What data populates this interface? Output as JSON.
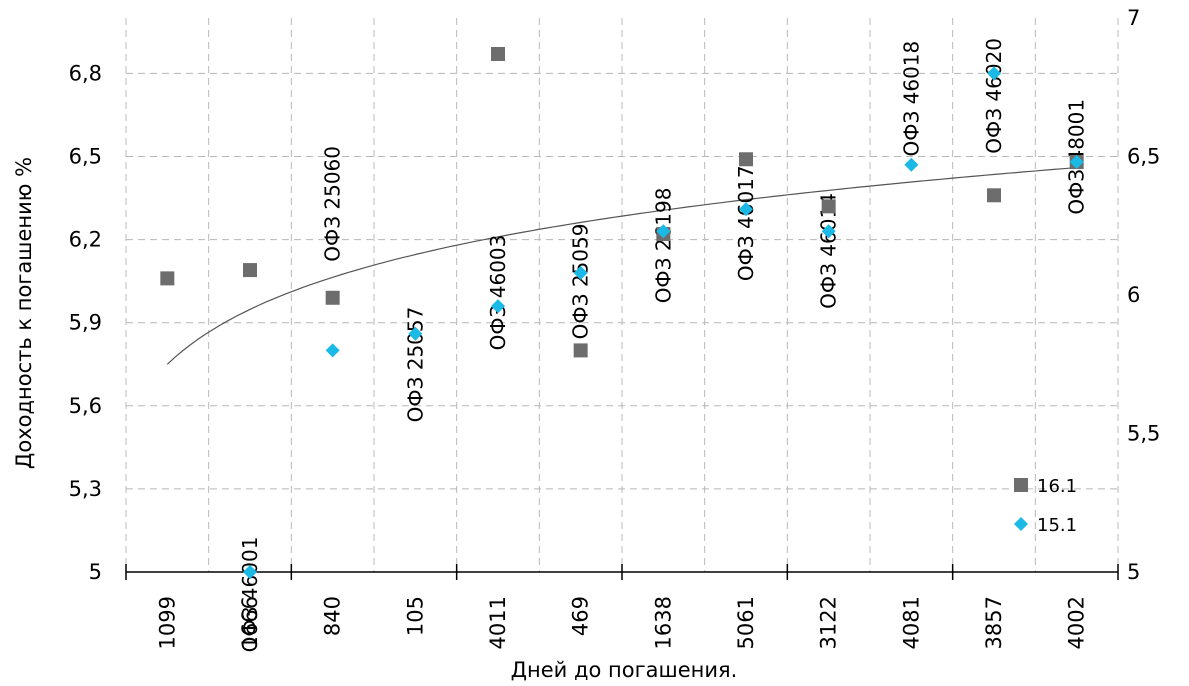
{
  "chart_data": {
    "type": "scatter",
    "title": "",
    "xlabel": "Дней до погашения.",
    "ylabel": "Доходность к погашению %",
    "categories": [
      "1099",
      "1666",
      "840",
      "105",
      "4011",
      "469",
      "1638",
      "5061",
      "3122",
      "4081",
      "3857",
      "4002"
    ],
    "y_primary": {
      "lim": [
        5,
        7
      ],
      "ticks": [
        "5",
        "5,3",
        "5,6",
        "5,9",
        "6,2",
        "6,5",
        "6,8"
      ]
    },
    "y_secondary": {
      "lim": [
        5,
        7
      ],
      "ticks": [
        "5",
        "5,5",
        "6",
        "6,5",
        "7"
      ]
    },
    "grid": true,
    "legend_position": "bottom-right",
    "series": [
      {
        "name": "16.1",
        "marker": "square",
        "color": "#6d6d6d",
        "values": [
          6.06,
          6.09,
          5.99,
          null,
          6.87,
          5.8,
          6.22,
          6.49,
          6.32,
          null,
          6.36,
          6.48
        ]
      },
      {
        "name": "15.1",
        "marker": "diamond",
        "color": "#1ab9e6",
        "values": [
          null,
          5.0,
          5.8,
          5.86,
          5.96,
          6.08,
          6.23,
          6.31,
          6.23,
          6.47,
          6.8,
          6.48
        ]
      }
    ],
    "trendline": {
      "type": "logarithmic",
      "color": "#555555",
      "from": [
        0,
        5.75
      ],
      "to": [
        11,
        6.46
      ]
    },
    "annotations": [
      {
        "text": "ОФЗ 46001",
        "category_index": 1,
        "y": 4.71
      },
      {
        "text": "ОФЗ 25060",
        "category_index": 2,
        "y": 6.12
      },
      {
        "text": "ОФЗ 25057",
        "category_index": 3,
        "y": 5.54
      },
      {
        "text": "ОФЗ 46003",
        "category_index": 4,
        "y": 5.8
      },
      {
        "text": "ОФЗ 25059",
        "category_index": 5,
        "y": 5.84
      },
      {
        "text": "ОФЗ 26198",
        "category_index": 6,
        "y": 5.97
      },
      {
        "text": "ОФЗ 46017",
        "category_index": 7,
        "y": 6.05
      },
      {
        "text": "ОФЗ 46014",
        "category_index": 8,
        "y": 5.95
      },
      {
        "text": "ОФЗ 46018",
        "category_index": 9,
        "y": 6.5
      },
      {
        "text": "ОФЗ 46020",
        "category_index": 10,
        "y": 6.51
      },
      {
        "text": "ОФЗ 48001",
        "category_index": 11,
        "y": 6.29
      }
    ]
  }
}
